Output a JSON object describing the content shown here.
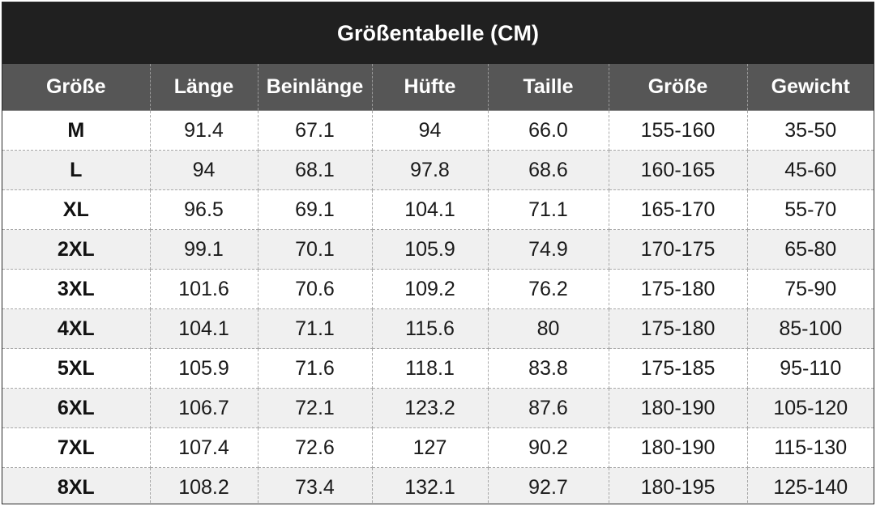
{
  "title": "Größentabelle (CM)",
  "headers": [
    "Größe",
    "Länge",
    "Beinlänge",
    "Hüfte",
    "Taille",
    "Größe",
    "Gewicht"
  ],
  "rows": [
    [
      "M",
      "91.4",
      "67.1",
      "94",
      "66.0",
      "155-160",
      "35-50"
    ],
    [
      "L",
      "94",
      "68.1",
      "97.8",
      "68.6",
      "160-165",
      "45-60"
    ],
    [
      "XL",
      "96.5",
      "69.1",
      "104.1",
      "71.1",
      "165-170",
      "55-70"
    ],
    [
      "2XL",
      "99.1",
      "70.1",
      "105.9",
      "74.9",
      "170-175",
      "65-80"
    ],
    [
      "3XL",
      "101.6",
      "70.6",
      "109.2",
      "76.2",
      "175-180",
      "75-90"
    ],
    [
      "4XL",
      "104.1",
      "71.1",
      "115.6",
      "80",
      "175-180",
      "85-100"
    ],
    [
      "5XL",
      "105.9",
      "71.6",
      "118.1",
      "83.8",
      "175-185",
      "95-110"
    ],
    [
      "6XL",
      "106.7",
      "72.1",
      "123.2",
      "87.6",
      "180-190",
      "105-120"
    ],
    [
      "7XL",
      "107.4",
      "72.6",
      "127",
      "90.2",
      "180-190",
      "115-130"
    ],
    [
      "8XL",
      "108.2",
      "73.4",
      "132.1",
      "92.7",
      "180-195",
      "125-140"
    ]
  ],
  "colors": {
    "title_bg": "#202020",
    "header_bg": "#565656",
    "row_alt_bg": "#f0f0f0"
  }
}
